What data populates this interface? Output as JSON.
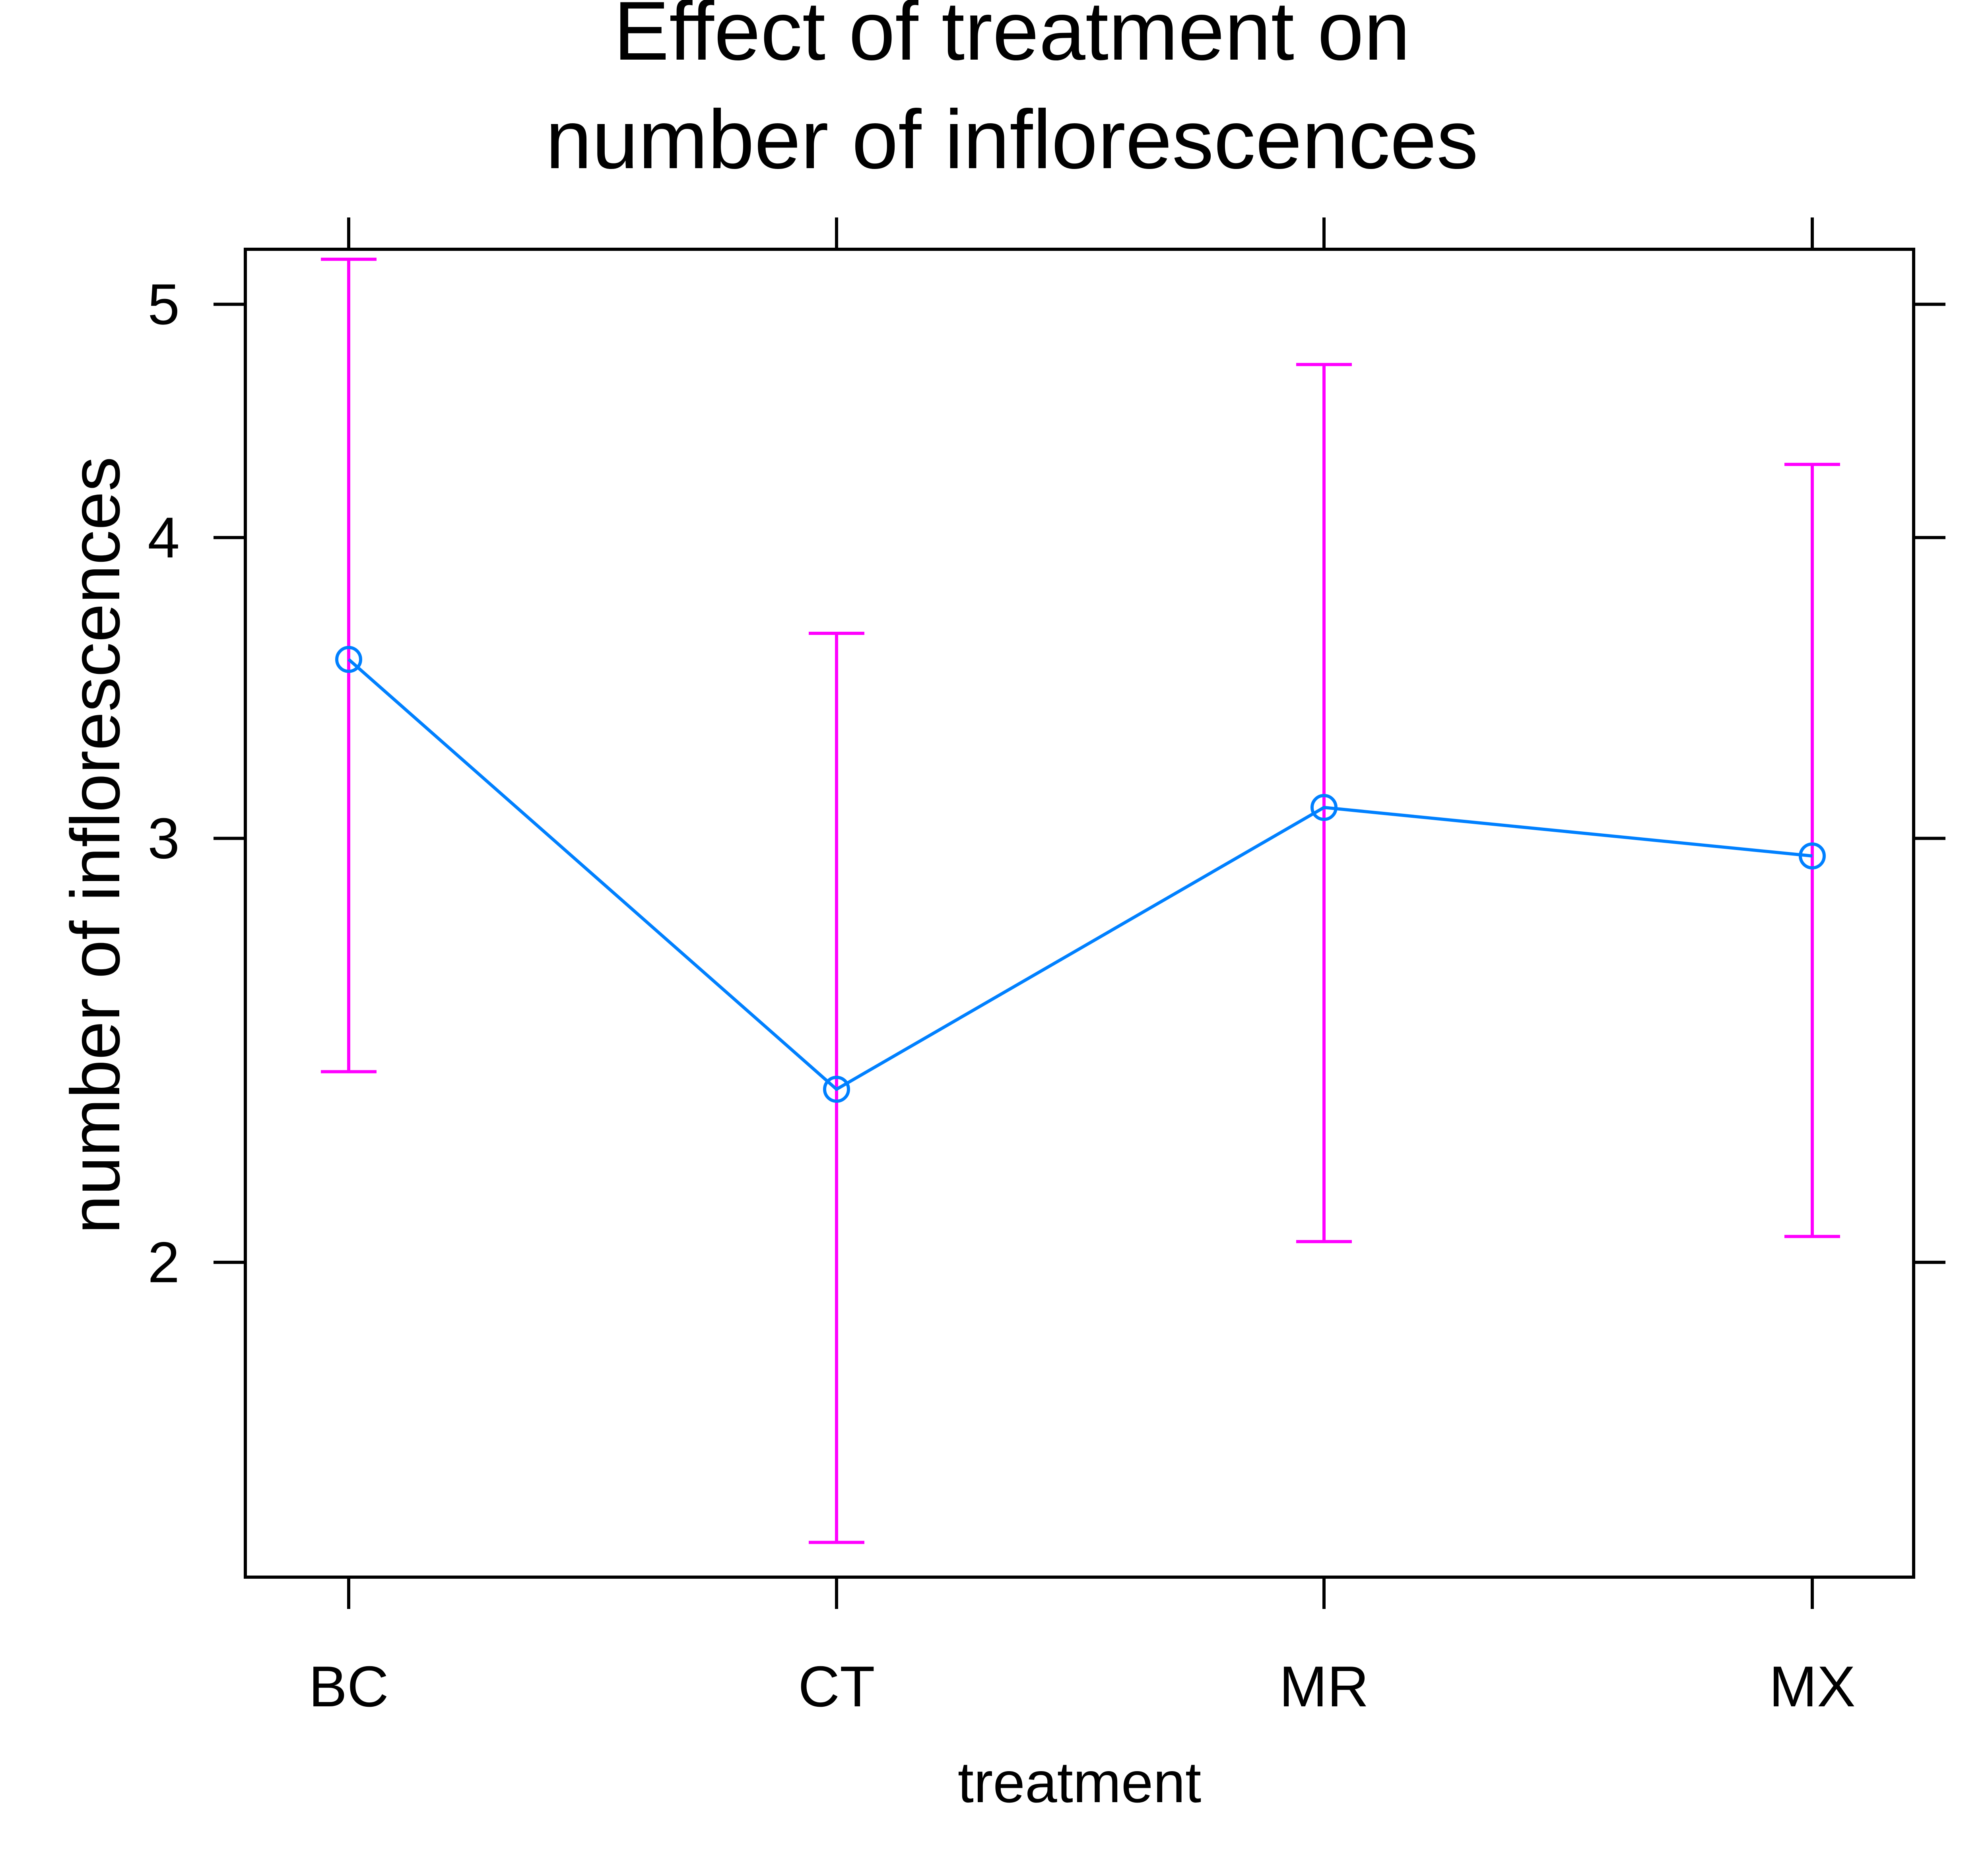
{
  "chart_data": {
    "type": "line",
    "title_lines": [
      "Effect of treatment on",
      "number of inflorescences"
    ],
    "xlabel": "treatment",
    "ylabel": "number of inflorescences",
    "categories": [
      "BC",
      "CT",
      "MR",
      "MX"
    ],
    "y_scale": "log",
    "ylim": [
      1.48,
      5.27
    ],
    "yticks": [
      2,
      3,
      4,
      5
    ],
    "ytick_labels": [
      "2",
      "3",
      "4",
      "5"
    ],
    "series": [
      {
        "values": [
          3.56,
          2.36,
          3.09,
          2.95
        ],
        "lower": [
          2.4,
          1.53,
          2.04,
          2.05
        ],
        "upper": [
          5.22,
          3.65,
          4.72,
          4.29
        ]
      }
    ],
    "colors": {
      "line": "#0080ff",
      "errorbar": "#ff00ff",
      "axis": "#000000"
    },
    "grid": false,
    "legend": "none"
  }
}
